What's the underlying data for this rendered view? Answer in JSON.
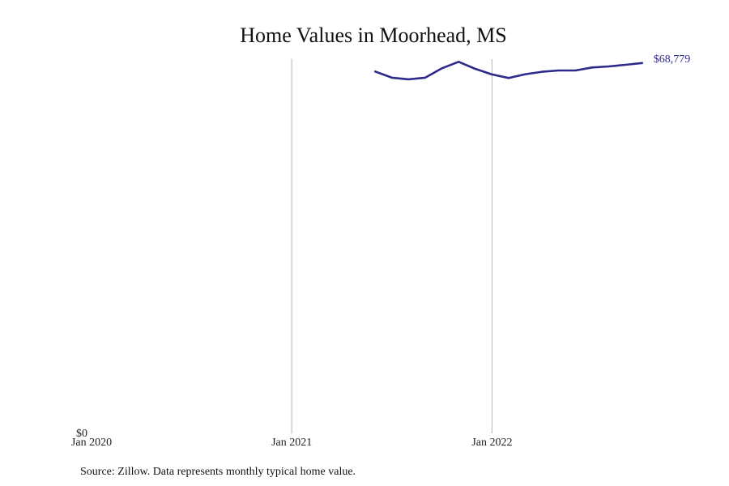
{
  "chart_data": {
    "type": "line",
    "title": "Home Values in Moorhead, MS",
    "source": "Source: Zillow. Data represents monthly typical home value.",
    "x_ticks": [
      "Jan 2020",
      "Jan 2021",
      "Jan 2022"
    ],
    "y_ticks": [
      "$0"
    ],
    "end_label": "$68,779",
    "ylim": [
      0,
      69500
    ],
    "xlim": [
      "2020-01",
      "2022-11"
    ],
    "grid": "vertical",
    "line_color": "#2e2a8c",
    "series": [
      {
        "x": [
          "2021-06",
          "2021-07",
          "2021-08",
          "2021-09",
          "2021-10",
          "2021-11",
          "2021-12",
          "2022-01",
          "2022-02",
          "2022-03",
          "2022-04",
          "2022-05",
          "2022-06",
          "2022-07",
          "2022-08",
          "2022-09",
          "2022-10"
        ],
        "values": [
          67200,
          66050,
          65750,
          66050,
          67800,
          69000,
          67700,
          66650,
          66000,
          66700,
          67150,
          67400,
          67400,
          67950,
          68150,
          68450,
          68779
        ]
      }
    ]
  }
}
